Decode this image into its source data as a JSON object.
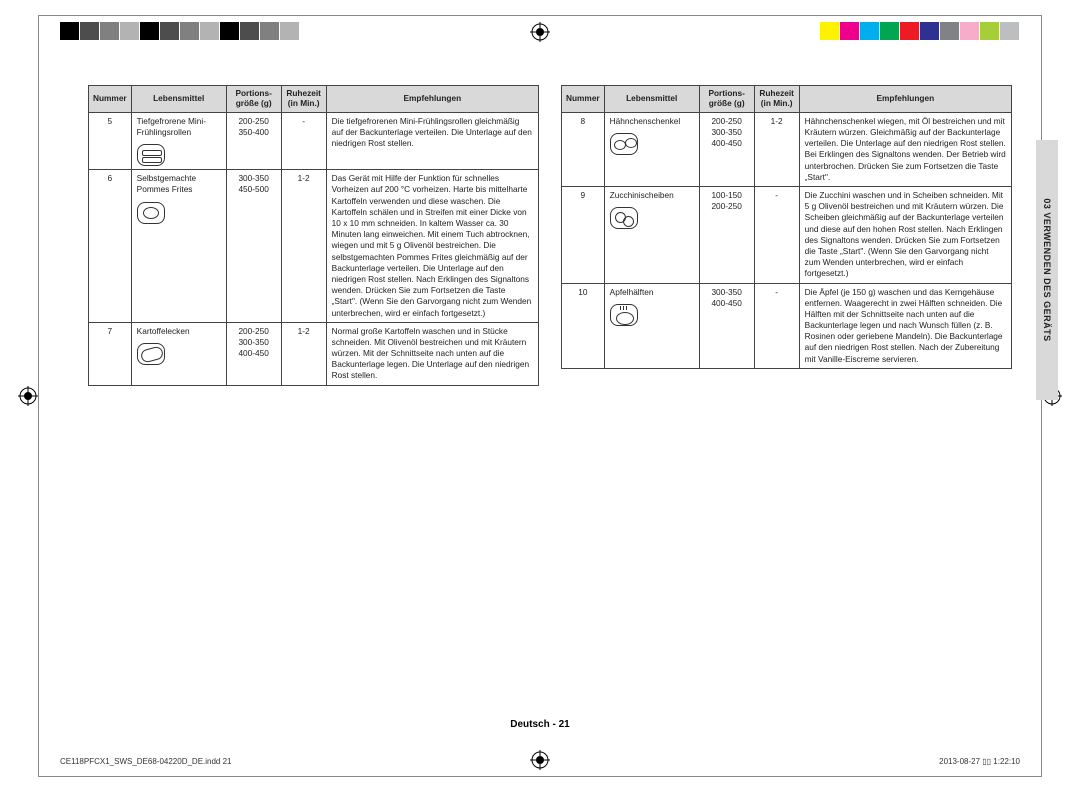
{
  "print_bars": {
    "left_colors": [
      "#000",
      "#4d4d4d",
      "#808080",
      "#b3b3b3",
      "#000",
      "#4d4d4d",
      "#808080",
      "#b3b3b3",
      "#000",
      "#4d4d4d",
      "#808080",
      "#b3b3b3"
    ],
    "right_colors": [
      "#fff200",
      "#ec008c",
      "#00aeef",
      "#00a651",
      "#ed1c24",
      "#2e3192",
      "#808285",
      "#f7adc9",
      "#a6ce39",
      "#bcbec0"
    ]
  },
  "side_tab": "03  VERWENDEN DES GERÄTS",
  "headers": {
    "num": "Nummer",
    "food": "Lebensmittel",
    "portion_l1": "Portions-",
    "portion_l2": "größe (g)",
    "rest_l1": "Ruhezeit",
    "rest_l2": "(in Min.)",
    "rec": "Empfehlungen"
  },
  "rows_left": [
    {
      "num": "5",
      "food": "Tiefgefrorene Mini-Frühlingsrollen",
      "icon": "icon-springroll",
      "icon_name": "spring-rolls-icon",
      "portions": "200-250\n350-400",
      "rest": "-",
      "rec": "Die tiefgefrorenen Mini-Frühlingsrollen gleichmäßig auf der Backunterlage verteilen. Die Unterlage auf den niedrigen Rost stellen."
    },
    {
      "num": "6",
      "food": "Selbstgemachte Pommes Frites",
      "icon": "icon-fries",
      "icon_name": "fries-icon",
      "portions": "300-350\n450-500",
      "rest": "1-2",
      "rec": "Das Gerät mit Hilfe der Funktion für schnelles Vorheizen auf 200 °C vorheizen. Harte bis mittelharte Kartoffeln verwenden und diese waschen. Die Kartoffeln schälen und in Streifen mit einer Dicke von 10 x 10 mm schneiden. In kaltem Wasser ca. 30 Minuten lang einweichen. Mit einem Tuch abtrocknen, wiegen und mit 5 g Olivenöl bestreichen. Die selbstgemachten Pommes Frites gleichmäßig auf der Backunterlage verteilen. Die Unterlage auf den niedrigen Rost stellen. Nach Erklingen des Signaltons wenden. Drücken Sie zum Fortsetzen die Taste „Start\". (Wenn Sie den Garvorgang nicht zum Wenden unterbrechen, wird er einfach fortgesetzt.)"
    },
    {
      "num": "7",
      "food": "Kartoffelecken",
      "icon": "icon-wedges",
      "icon_name": "potato-wedges-icon",
      "portions": "200-250\n300-350\n400-450",
      "rest": "1-2",
      "rec": "Normal große Kartoffeln waschen und in Stücke schneiden. Mit Olivenöl bestreichen und mit Kräutern würzen. Mit der Schnittseite nach unten auf die Backunterlage legen. Die Unterlage auf den niedrigen Rost stellen."
    }
  ],
  "rows_right": [
    {
      "num": "8",
      "food": "Hähnchenschenkel",
      "icon": "icon-chicken",
      "icon_name": "chicken-legs-icon",
      "portions": "200-250\n300-350\n400-450",
      "rest": "1-2",
      "rec": "Hähnchenschenkel wiegen, mit Öl bestreichen und mit Kräutern würzen. Gleichmäßig auf der Backunterlage verteilen. Die Unterlage auf den niedrigen Rost stellen. Bei Erklingen des Signaltons wenden. Der Betrieb wird unterbrochen. Drücken Sie zum Fortsetzen die Taste „Start\"."
    },
    {
      "num": "9",
      "food": "Zucchinischeiben",
      "icon": "icon-zucc",
      "icon_name": "zucchini-slices-icon",
      "portions": "100-150\n200-250",
      "rest": "-",
      "rec": "Die Zucchini waschen und in Scheiben schneiden. Mit 5 g Olivenöl bestreichen und mit Kräutern würzen. Die Scheiben gleichmäßig auf der Backunterlage verteilen und diese auf den hohen Rost stellen. Nach Erklingen des Signaltons wenden. Drücken Sie zum Fortsetzen die Taste „Start\". (Wenn Sie den Garvorgang nicht zum Wenden unterbrechen, wird er einfach fortgesetzt.)"
    },
    {
      "num": "10",
      "food": "Apfelhälften",
      "icon": "icon-apple",
      "icon_name": "apple-halves-icon",
      "portions": "300-350\n400-450",
      "rest": "-",
      "rec": "Die Äpfel (je 150 g) waschen und das Kerngehäuse entfernen. Waagerecht in zwei Hälften schneiden. Die Hälften mit der Schnittseite nach unten auf die Backunterlage legen und nach Wunsch füllen (z. B. Rosinen oder geriebene Mandeln). Die Backunterlage auf den niedrigen Rost stellen. Nach der Zubereitung mit Vanille-Eiscreme servieren."
    }
  ],
  "footer": "Deutsch - 21",
  "meta": {
    "file": "CE118PFCX1_SWS_DE68-04220D_DE.indd   21",
    "time": "2013-08-27   ▯▯ 1:22:10"
  }
}
